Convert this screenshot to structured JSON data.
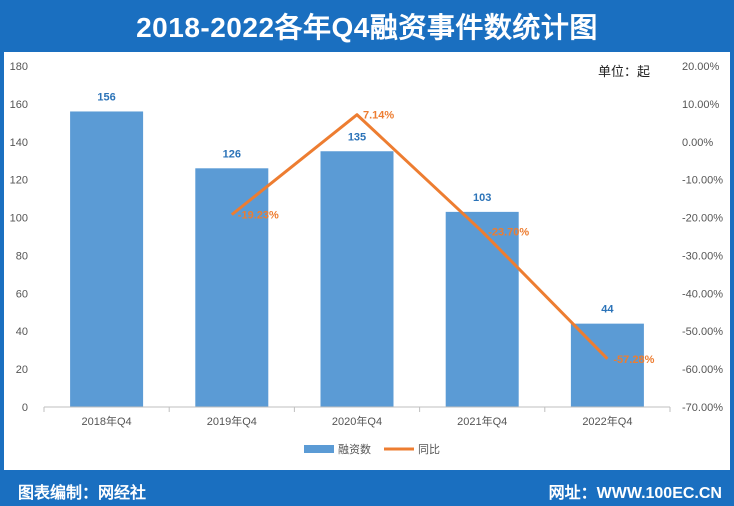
{
  "title": "2018-2022各年Q4融资事件数统计图",
  "unit_label": "单位：起",
  "footer": {
    "left": "图表编制：网经社",
    "right": "网址：WWW.100EC.CN"
  },
  "colors": {
    "header_bg": "#1a6fc0",
    "bar": "#5b9bd5",
    "line": "#ed7d31",
    "bar_label": "#2b73b8"
  },
  "chart_data": {
    "type": "bar",
    "categories": [
      "2018年Q4",
      "2019年Q4",
      "2020年Q4",
      "2021年Q4",
      "2022年Q4"
    ],
    "series": [
      {
        "name": "融资数",
        "type": "bar",
        "axis": "left",
        "values": [
          156,
          126,
          135,
          103,
          44
        ],
        "labels": [
          "156",
          "126",
          "135",
          "103",
          "44"
        ]
      },
      {
        "name": "同比",
        "type": "line",
        "axis": "right",
        "values": [
          null,
          -19.23,
          7.14,
          -23.7,
          -57.28
        ],
        "labels": [
          "",
          "-19.23%",
          "7.14%",
          "-23.70%",
          "-57.28%"
        ]
      }
    ],
    "ylim_left": [
      0,
      180
    ],
    "yticks_left": [
      "0",
      "20",
      "40",
      "60",
      "80",
      "100",
      "120",
      "140",
      "160",
      "180"
    ],
    "ylim_right": [
      -70,
      20
    ],
    "yticks_right": [
      "-70.00%",
      "-60.00%",
      "-50.00%",
      "-40.00%",
      "-30.00%",
      "-20.00%",
      "-10.00%",
      "0.00%",
      "10.00%",
      "20.00%"
    ],
    "grid": false,
    "legend": "bottom"
  }
}
